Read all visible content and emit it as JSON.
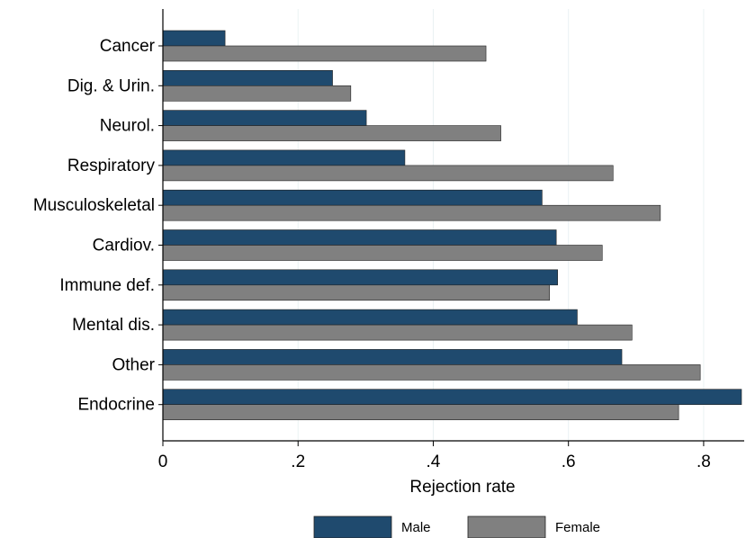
{
  "chart_data": {
    "type": "bar",
    "orientation": "horizontal",
    "categories": [
      "Cancer",
      "Dig. & Urin.",
      "Neurol.",
      "Respiratory",
      "Musculoskeletal",
      "Cardiov.",
      "Immune def.",
      "Mental dis.",
      "Other",
      "Endocrine"
    ],
    "series": [
      {
        "name": "Male",
        "color": "#1f4a6e",
        "values": [
          0.092,
          0.251,
          0.301,
          0.358,
          0.561,
          0.582,
          0.584,
          0.613,
          0.679,
          0.856
        ]
      },
      {
        "name": "Female",
        "color": "#808080",
        "values": [
          0.478,
          0.278,
          0.5,
          0.666,
          0.736,
          0.65,
          0.572,
          0.694,
          0.795,
          0.763
        ]
      }
    ],
    "xlabel": "Rejection rate",
    "xlim": [
      0,
      0.86
    ],
    "xticks": [
      0,
      0.2,
      0.4,
      0.6,
      0.8
    ],
    "xtick_labels": [
      "0",
      ".2",
      ".4",
      ".6",
      ".8"
    ],
    "grid": "vertical",
    "legend_position": "bottom"
  }
}
